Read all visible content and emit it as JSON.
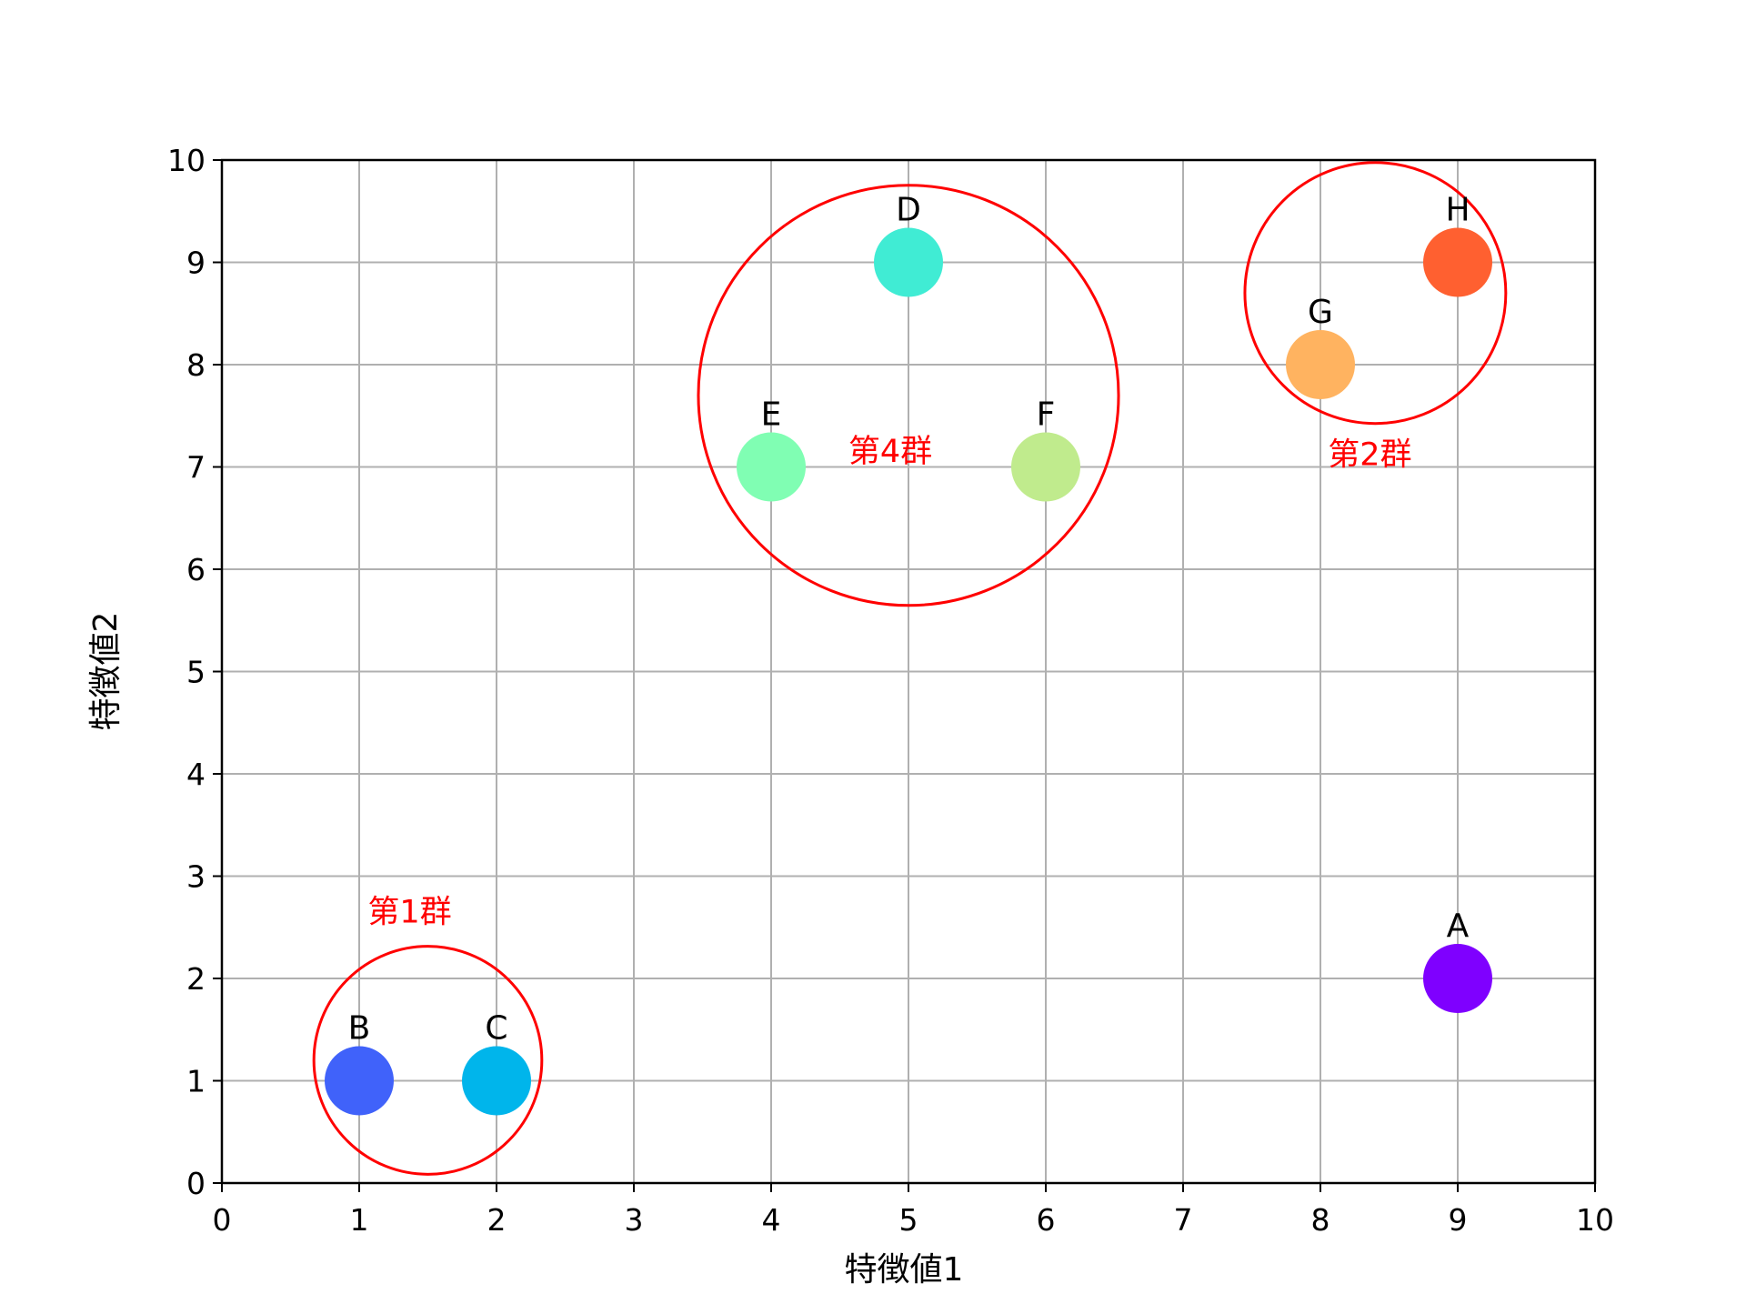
{
  "chart_data": {
    "type": "scatter",
    "title": "",
    "xlabel": "特徴値1",
    "ylabel": "特徴値2",
    "xlim": [
      0,
      10
    ],
    "ylim": [
      0,
      10
    ],
    "xticks": [
      "0",
      "1",
      "2",
      "3",
      "4",
      "5",
      "6",
      "7",
      "8",
      "9",
      "10"
    ],
    "yticks": [
      "0",
      "1",
      "2",
      "3",
      "4",
      "5",
      "6",
      "7",
      "8",
      "9",
      "10"
    ],
    "grid": true,
    "points": [
      {
        "label": "A",
        "x": 9,
        "y": 2,
        "color": "#7f00ff"
      },
      {
        "label": "B",
        "x": 1,
        "y": 1,
        "color": "#4062fa"
      },
      {
        "label": "C",
        "x": 2,
        "y": 1,
        "color": "#00b5eb"
      },
      {
        "label": "D",
        "x": 5,
        "y": 9,
        "color": "#40ecd4"
      },
      {
        "label": "E",
        "x": 4,
        "y": 7,
        "color": "#80feb3"
      },
      {
        "label": "F",
        "x": 6,
        "y": 7,
        "color": "#c0eb8d"
      },
      {
        "label": "G",
        "x": 8,
        "y": 8,
        "color": "#ffb360"
      },
      {
        "label": "H",
        "x": 9,
        "y": 9,
        "color": "#ff6030"
      }
    ],
    "clusters": [
      {
        "label": "第1群",
        "center_x": 1.5,
        "center_y": 1.2,
        "radius": 0.83,
        "color": "#ff0000"
      },
      {
        "label": "第4群",
        "center_x": 5.0,
        "center_y": 7.7,
        "radius": 1.53,
        "color": "#ff0000"
      },
      {
        "label": "第2群",
        "center_x": 8.4,
        "center_y": 8.7,
        "radius": 0.95,
        "color": "#ff0000"
      }
    ],
    "colors": {
      "grid": "#b0b0b0",
      "axis": "#000000",
      "cluster_outline": "#ff0000"
    }
  }
}
